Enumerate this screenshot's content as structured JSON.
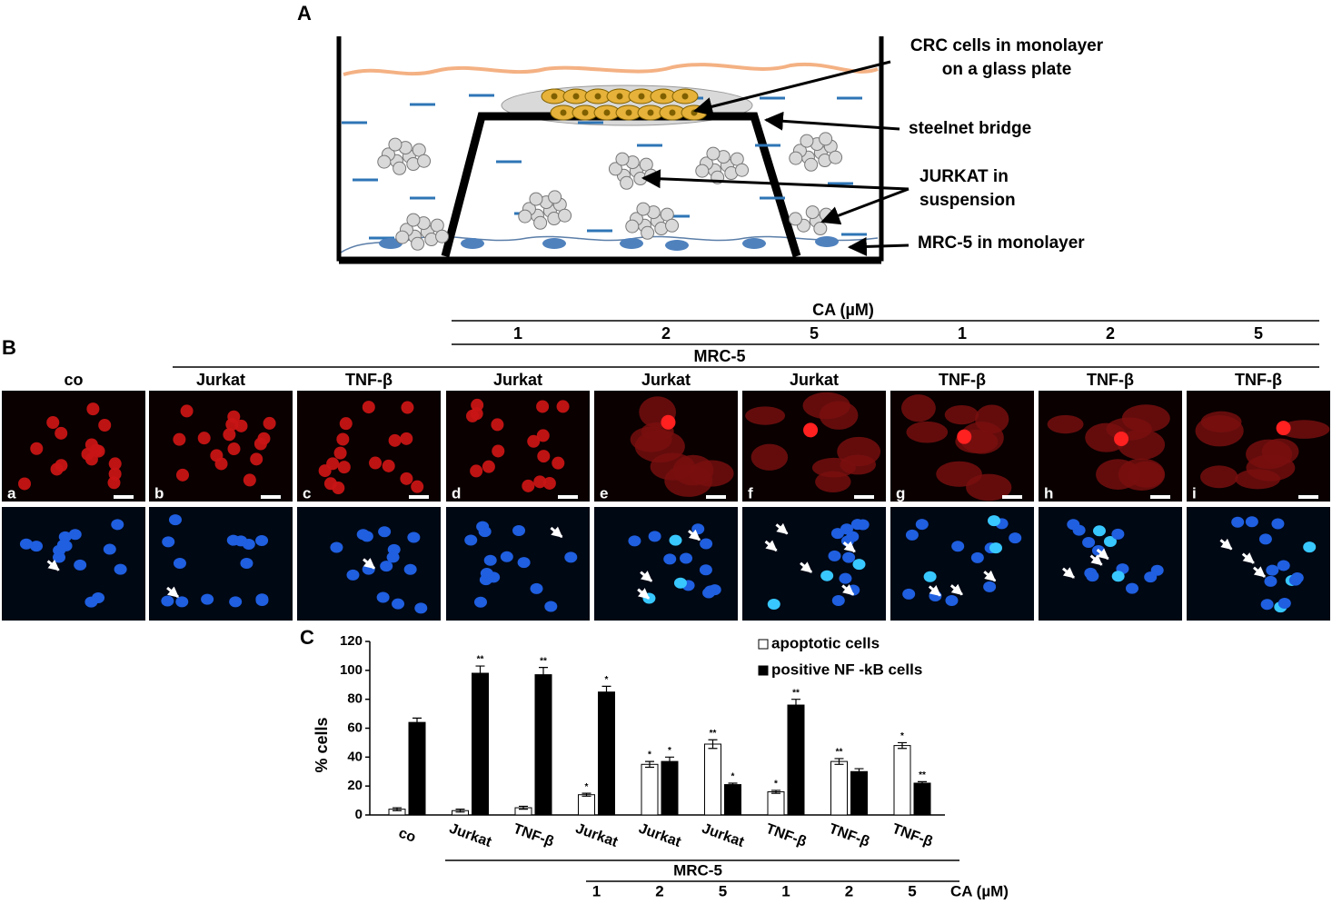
{
  "panel_a": {
    "label": "A",
    "labels": [
      [
        "CRC  cells in monolayer",
        "on a glass plate"
      ],
      [
        "steelnet bridge"
      ],
      [
        "JURKAT  in",
        "suspension"
      ],
      [
        "MRC-5  in monolayer"
      ]
    ]
  },
  "panel_b": {
    "label": "B",
    "treatment": "CA (µM)",
    "concentrations": [
      1,
      2,
      5,
      1,
      2,
      5
    ],
    "cell_line": "MRC-5",
    "columns": [
      "co",
      "Jurkat",
      "TNF-β",
      "Jurkat",
      "Jurkat",
      "Jurkat",
      "TNF-β",
      "TNF-β",
      "TNF-β"
    ],
    "image_letters": [
      "a",
      "b",
      "c",
      "d",
      "e",
      "f",
      "g",
      "h",
      "i"
    ]
  },
  "chart_data": {
    "type": "bar",
    "label": "C",
    "ylabel": "% cells",
    "categories": [
      "co",
      "Jurkat",
      "TNF-β",
      "Jurkat",
      "Jurkat",
      "Jurkat",
      "TNF-β",
      "TNF-β",
      "TNF-β"
    ],
    "series": [
      {
        "name": "apoptotic cells",
        "color": "#ffffff",
        "values": [
          4,
          3,
          5,
          14,
          35,
          49,
          16,
          37,
          48
        ],
        "errors": [
          1,
          1,
          1,
          1,
          2,
          3,
          1,
          2,
          2
        ],
        "significance": [
          null,
          null,
          null,
          "*",
          "*",
          "**",
          "*",
          "**",
          "*"
        ]
      },
      {
        "name": "positive NF -kB cells",
        "color": "#000000",
        "values": [
          64,
          98,
          97,
          85,
          37,
          21,
          76,
          30,
          22
        ],
        "errors": [
          3,
          5,
          5,
          4,
          3,
          1,
          4,
          2,
          1
        ],
        "significance": [
          null,
          "**",
          "**",
          "*",
          "*",
          "*",
          "**",
          null,
          "**"
        ]
      }
    ],
    "ylim": [
      0,
      120
    ],
    "yticks": [
      0,
      20,
      40,
      60,
      80,
      100,
      120
    ],
    "group_label": "MRC-5",
    "concentration_label": "CA (µM)",
    "concentrations": [
      1,
      2,
      5,
      1,
      2,
      5
    ]
  }
}
